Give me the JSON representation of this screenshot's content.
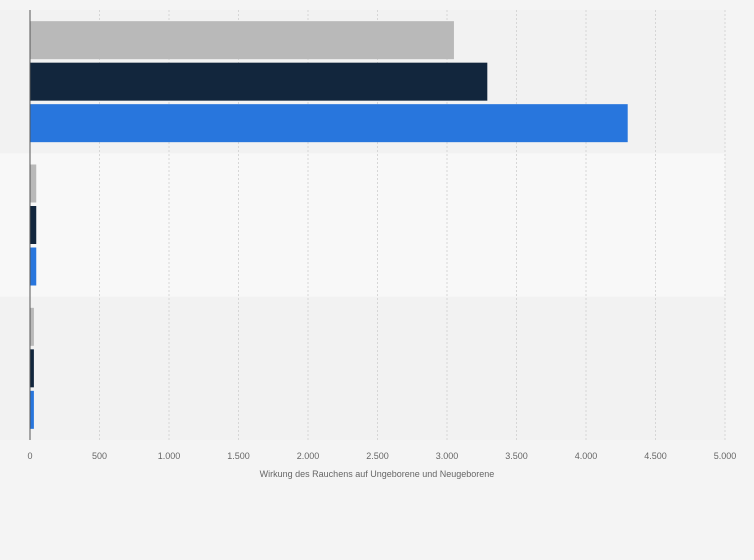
{
  "chart_data": {
    "type": "bar",
    "orientation": "horizontal",
    "title": "",
    "xlabel": "Wirkung des Rauchens auf Ungeborene und Neugeborene",
    "ylabel": "",
    "categories": [
      "",
      "",
      ""
    ],
    "series": [
      {
        "name": "",
        "color": "#b9b9b9",
        "values": [
          3050,
          45,
          28
        ]
      },
      {
        "name": "",
        "color": "#12263d",
        "values": [
          3290,
          45,
          28
        ]
      },
      {
        "name": "",
        "color": "#2876dd",
        "values": [
          4300,
          45,
          28
        ]
      }
    ],
    "xlim": [
      0,
      5000
    ],
    "xticks": [
      0,
      500,
      1000,
      1500,
      2000,
      2500,
      3000,
      3500,
      4000,
      4500,
      5000
    ],
    "xtick_labels": [
      "0",
      "500",
      "1.000",
      "1.500",
      "2.000",
      "2.500",
      "3.000",
      "3.500",
      "4.000",
      "4.500",
      "5.000"
    ],
    "grid": true,
    "legend": "none"
  }
}
